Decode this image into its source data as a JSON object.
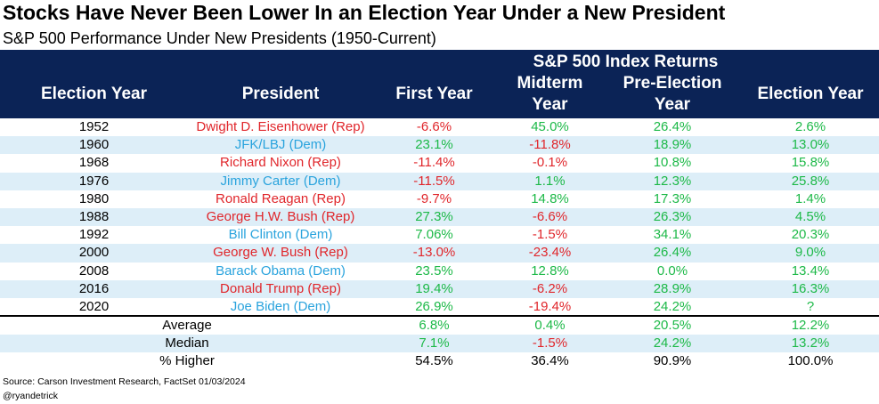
{
  "title": "Stocks Have Never Been Lower In an Election Year Under a New President",
  "subtitle": "S&P 500 Performance Under New Presidents (1950-Current)",
  "colors": {
    "header_bg": "#0b2356",
    "header_text": "#ffffff",
    "row_shade": "#ddeef8",
    "positive": "#1db948",
    "negative": "#e0262b",
    "rep": "#e0262b",
    "dem": "#29a3dd"
  },
  "chart_data": {
    "type": "table",
    "title": "Stocks Have Never Been Lower In an Election Year Under a New President",
    "subtitle": "S&P 500 Performance Under New Presidents (1950-Current)",
    "group_header": "S&P 500 Index Returns",
    "columns": [
      "Election Year",
      "President",
      "First Year",
      "Midterm Year",
      "Pre-Election Year",
      "Election Year"
    ],
    "rows": [
      {
        "year": "1952",
        "president": "Dwight D. Eisenhower (Rep)",
        "party": "rep",
        "first": "-6.6%",
        "midterm": "45.0%",
        "pre": "26.4%",
        "election": "2.6%"
      },
      {
        "year": "1960",
        "president": "JFK/LBJ (Dem)",
        "party": "dem",
        "first": "23.1%",
        "midterm": "-11.8%",
        "pre": "18.9%",
        "election": "13.0%"
      },
      {
        "year": "1968",
        "president": "Richard Nixon (Rep)",
        "party": "rep",
        "first": "-11.4%",
        "midterm": "-0.1%",
        "pre": "10.8%",
        "election": "15.8%"
      },
      {
        "year": "1976",
        "president": "Jimmy Carter (Dem)",
        "party": "dem",
        "first": "-11.5%",
        "midterm": "1.1%",
        "pre": "12.3%",
        "election": "25.8%"
      },
      {
        "year": "1980",
        "president": "Ronald Reagan (Rep)",
        "party": "rep",
        "first": "-9.7%",
        "midterm": "14.8%",
        "pre": "17.3%",
        "election": "1.4%"
      },
      {
        "year": "1988",
        "president": "George H.W. Bush (Rep)",
        "party": "rep",
        "first": "27.3%",
        "midterm": "-6.6%",
        "pre": "26.3%",
        "election": "4.5%"
      },
      {
        "year": "1992",
        "president": "Bill Clinton (Dem)",
        "party": "dem",
        "first": "7.06%",
        "midterm": "-1.5%",
        "pre": "34.1%",
        "election": "20.3%"
      },
      {
        "year": "2000",
        "president": "George W. Bush (Rep)",
        "party": "rep",
        "first": "-13.0%",
        "midterm": "-23.4%",
        "pre": "26.4%",
        "election": "9.0%"
      },
      {
        "year": "2008",
        "president": "Barack Obama (Dem)",
        "party": "dem",
        "first": "23.5%",
        "midterm": "12.8%",
        "pre": "0.0%",
        "election": "13.4%"
      },
      {
        "year": "2016",
        "president": "Donald Trump (Rep)",
        "party": "rep",
        "first": "19.4%",
        "midterm": "-6.2%",
        "pre": "28.9%",
        "election": "16.3%"
      },
      {
        "year": "2020",
        "president": "Joe Biden (Dem)",
        "party": "dem",
        "first": "26.9%",
        "midterm": "-19.4%",
        "pre": "24.2%",
        "election": "?"
      }
    ],
    "summary": [
      {
        "label": "Average",
        "first": "6.8%",
        "midterm": "0.4%",
        "pre": "20.5%",
        "election": "12.2%",
        "colored": true
      },
      {
        "label": "Median",
        "first": "7.1%",
        "midterm": "-1.5%",
        "pre": "24.2%",
        "election": "13.2%",
        "colored": true
      },
      {
        "label": "% Higher",
        "first": "54.5%",
        "midterm": "36.4%",
        "pre": "90.9%",
        "election": "100.0%",
        "colored": false
      }
    ]
  },
  "source": "Source: Carson Investment Research, FactSet 01/03/2024",
  "handle": "@ryandetrick"
}
